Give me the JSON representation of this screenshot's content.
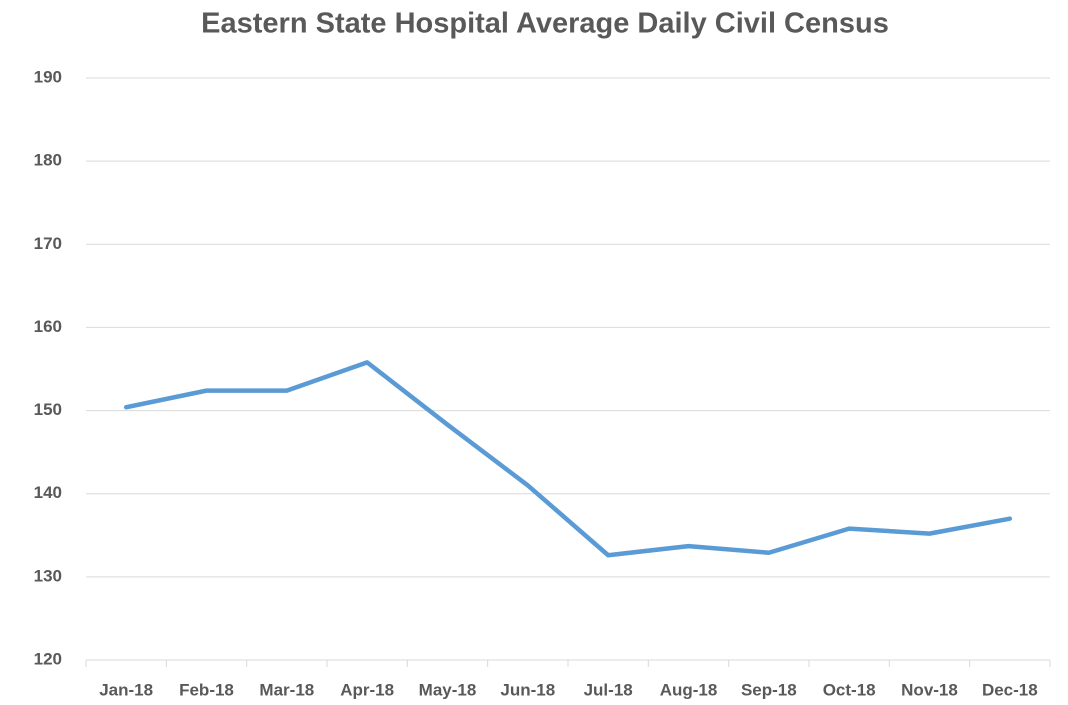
{
  "chart_data": {
    "type": "line",
    "title": "Eastern State Hospital Average Daily Civil Census",
    "categories": [
      "Jan-18",
      "Feb-18",
      "Mar-18",
      "Apr-18",
      "May-18",
      "Jun-18",
      "Jul-18",
      "Aug-18",
      "Sep-18",
      "Oct-18",
      "Nov-18",
      "Dec-18"
    ],
    "series": [
      {
        "name": "Average Daily Civil Census",
        "color": "#5b9bd5",
        "values": [
          150.4,
          152.4,
          152.4,
          155.8,
          148.3,
          141.0,
          132.6,
          133.7,
          132.9,
          135.8,
          135.2,
          137.0
        ]
      }
    ],
    "ylim": [
      120,
      190
    ],
    "yticks": [
      120,
      130,
      140,
      150,
      160,
      170,
      180,
      190
    ],
    "grid": true
  }
}
